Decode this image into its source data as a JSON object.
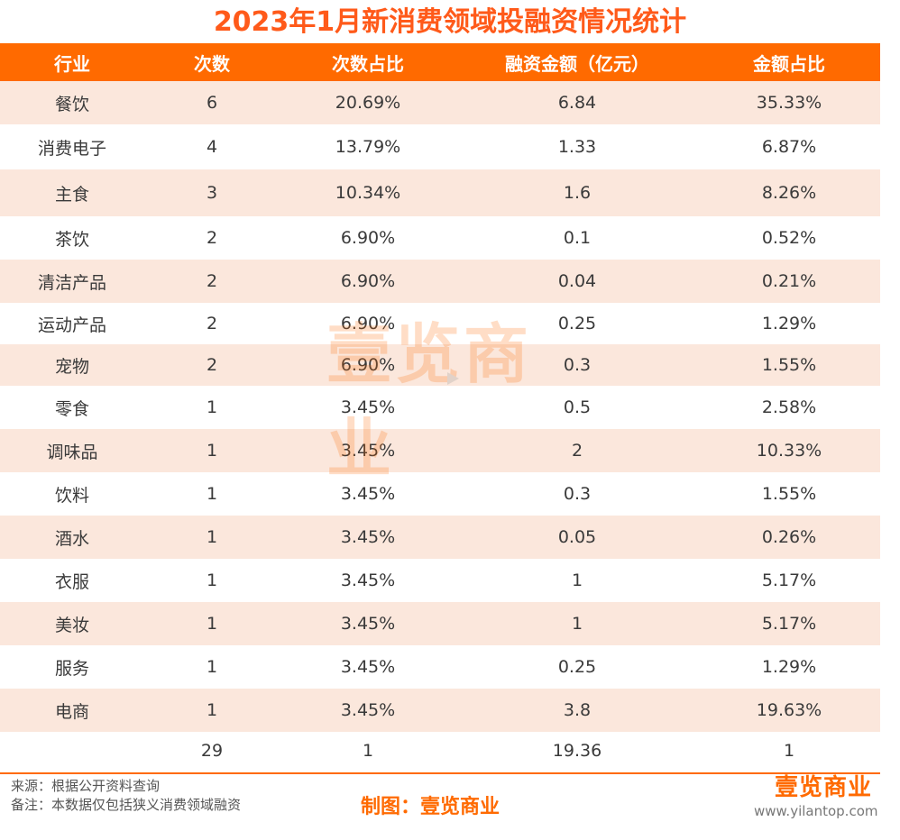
{
  "title": "2023年1月新消费领域投融资情况统计",
  "colors": {
    "accent": "#ff6a00",
    "title": "#ff5a1a",
    "stripe": "#fbe7dc",
    "header_text": "#ffffff"
  },
  "table": {
    "headers": [
      "行业",
      "次数",
      "次数占比",
      "融资金额（亿元）",
      "金额占比"
    ],
    "rows": [
      [
        "餐饮",
        "6",
        "20.69%",
        "6.84",
        "35.33%"
      ],
      [
        "消费电子",
        "4",
        "13.79%",
        "1.33",
        "6.87%"
      ],
      [
        "主食",
        "3",
        "10.34%",
        "1.6",
        "8.26%"
      ],
      [
        "茶饮",
        "2",
        "6.90%",
        "0.1",
        "0.52%"
      ],
      [
        "清洁产品",
        "2",
        "6.90%",
        "0.04",
        "0.21%"
      ],
      [
        "运动产品",
        "2",
        "6.90%",
        "0.25",
        "1.29%"
      ],
      [
        "宠物",
        "2",
        "6.90%",
        "0.3",
        "1.55%"
      ],
      [
        "零食",
        "1",
        "3.45%",
        "0.5",
        "2.58%"
      ],
      [
        "调味品",
        "1",
        "3.45%",
        "2",
        "10.33%"
      ],
      [
        "饮料",
        "1",
        "3.45%",
        "0.3",
        "1.55%"
      ],
      [
        "酒水",
        "1",
        "3.45%",
        "0.05",
        "0.26%"
      ],
      [
        "衣服",
        "1",
        "3.45%",
        "1",
        "5.17%"
      ],
      [
        "美妆",
        "1",
        "3.45%",
        "1",
        "5.17%"
      ],
      [
        "服务",
        "1",
        "3.45%",
        "0.25",
        "1.29%"
      ],
      [
        "电商",
        "1",
        "3.45%",
        "3.8",
        "19.63%"
      ]
    ],
    "total": [
      "",
      "29",
      "1",
      "19.36",
      "1"
    ]
  },
  "footer": {
    "source": "来源：根据公开资料查询",
    "note": "备注：本数据仅包括狭义消费领域融资",
    "credit": "制图：壹览商业",
    "brand_mark": "壹览商业",
    "brand_url": "www.yilantop.com"
  },
  "watermark": "壹览商业"
}
